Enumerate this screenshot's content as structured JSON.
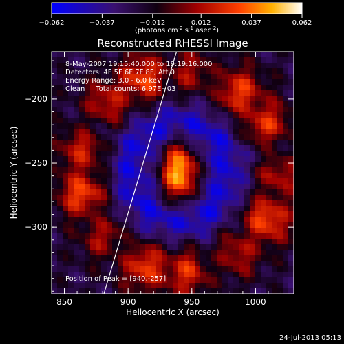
{
  "chart_data": {
    "type": "heatmap",
    "title": "Reconstructed RHESSI Image",
    "xlabel": "Heliocentric X (arcsec)",
    "ylabel": "Heliocentric Y (arcsec)",
    "xlim": [
      840,
      1030
    ],
    "ylim": [
      -352,
      -163
    ],
    "xticks": [
      850,
      900,
      950,
      1000
    ],
    "yticks": [
      -200,
      -250,
      -300
    ],
    "grid": false,
    "colorbar": {
      "ticks": [
        "-0.062",
        "-0.037",
        "-0.012",
        "0.012",
        "0.037",
        "0.062"
      ],
      "range": [
        -0.062,
        0.062
      ],
      "unit_prefix": "(photons cm",
      "unit_exp1": "-2",
      "unit_mid": " s",
      "unit_exp2": "-1",
      "unit_mid2": " asec",
      "unit_exp3": "-2",
      "unit_suffix": ")"
    },
    "annotations": {
      "time_range": "8-May-2007 19:15:40.000 to 19:19:16.000",
      "detectors": "Detectors: 4F 5F 6F 7F 8F, Att 0",
      "energy_range": "Energy Range: 3.0 - 6.0 keV",
      "method": "Clean     Total counts: 6.97E+03",
      "peak": "Position of Peak = [940,-257]"
    },
    "peak_position": [
      940,
      -257
    ],
    "limb_line": [
      [
        881,
        -352
      ],
      [
        938,
        -163
      ]
    ],
    "image_model": {
      "core": {
        "x": 940,
        "y": -257,
        "amplitude": 0.062
      },
      "inner_dark_ring_radius": 38,
      "outer_bright_ring_radius": 78,
      "background": -0.02
    }
  },
  "footer": {
    "timestamp": "24-Jul-2013 05:13"
  }
}
